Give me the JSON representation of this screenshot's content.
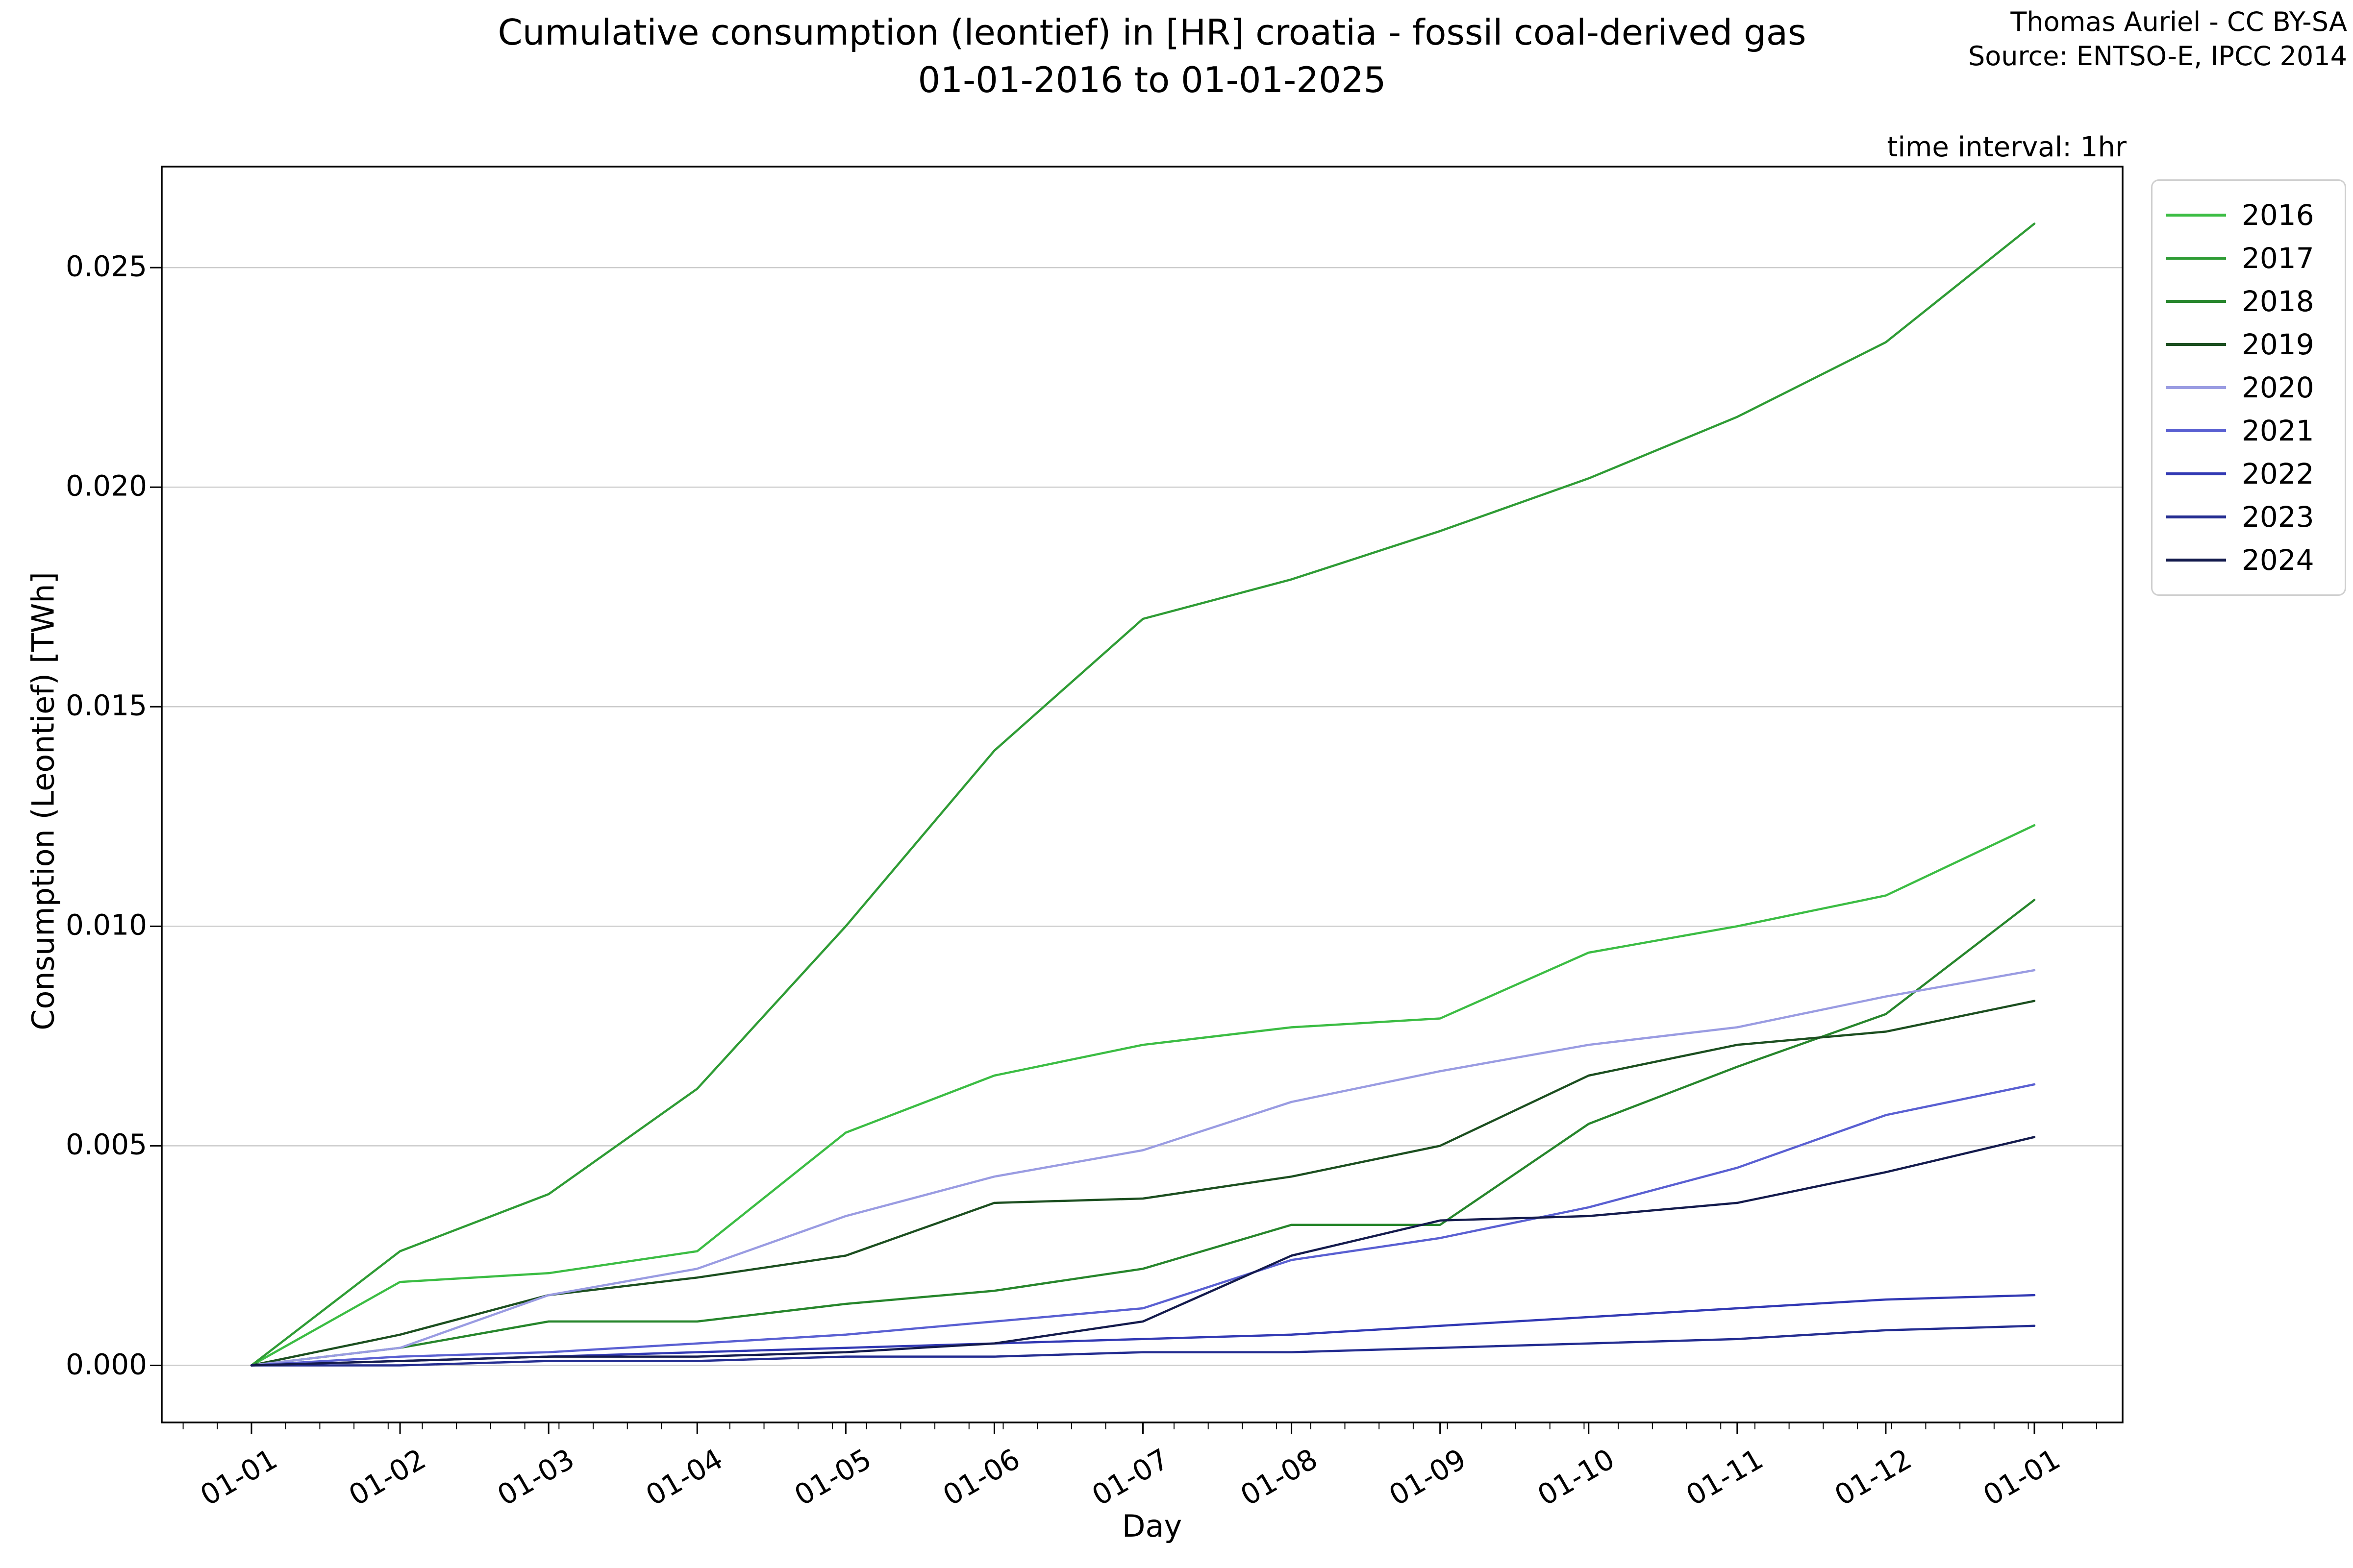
{
  "title_line1": "Cumulative consumption (leontief) in [HR] croatia - fossil coal-derived gas",
  "title_line2": "01-01-2016 to 01-01-2025",
  "attribution_line1": "Thomas Auriel - CC BY-SA",
  "attribution_line2": "Source: ENTSO-E, IPCC 2014",
  "annotation": "time interval: 1hr",
  "chart_data": {
    "type": "line",
    "title": "Cumulative consumption (leontief) in [HR] croatia - fossil coal-derived gas 01-01-2016 to 01-01-2025",
    "xlabel": "Day",
    "ylabel": "Consumption (Leontief) [TWh]",
    "x_tick_labels": [
      "01-01",
      "01-02",
      "01-03",
      "01-04",
      "01-05",
      "01-06",
      "01-07",
      "01-08",
      "01-09",
      "01-10",
      "01-11",
      "01-12",
      "01-01"
    ],
    "y_tick_labels": [
      "0.000",
      "0.005",
      "0.010",
      "0.015",
      "0.020",
      "0.025"
    ],
    "y_tick_values": [
      0.0,
      0.005,
      0.01,
      0.015,
      0.02,
      0.025
    ],
    "ylim": [
      -0.0013,
      0.0273
    ],
    "grid": true,
    "grid_color": "#cccccc",
    "legend_position": "right",
    "legend_title": null,
    "x_unit": "month-of-year sample points (Jan 1 through following Jan 1)",
    "series": [
      {
        "name": "2016",
        "color": "#3cbd44",
        "values": [
          0.0,
          0.0019,
          0.0021,
          0.0026,
          0.0053,
          0.0066,
          0.0073,
          0.0077,
          0.0079,
          0.0094,
          0.01,
          0.0107,
          0.0123
        ]
      },
      {
        "name": "2017",
        "color": "#2f9c35",
        "values": [
          0.0,
          0.0026,
          0.0039,
          0.0063,
          0.01,
          0.014,
          0.017,
          0.0179,
          0.019,
          0.0202,
          0.0216,
          0.0233,
          0.026
        ]
      },
      {
        "name": "2018",
        "color": "#27862c",
        "values": [
          0.0,
          0.0004,
          0.001,
          0.001,
          0.0014,
          0.0017,
          0.0022,
          0.0032,
          0.0032,
          0.0055,
          0.0068,
          0.008,
          0.0106
        ]
      },
      {
        "name": "2019",
        "color": "#1c4f20",
        "values": [
          0.0,
          0.0007,
          0.0016,
          0.002,
          0.0025,
          0.0037,
          0.0038,
          0.0043,
          0.005,
          0.0066,
          0.0073,
          0.0076,
          0.0083
        ]
      },
      {
        "name": "2020",
        "color": "#9a9ce2",
        "values": [
          0.0,
          0.0004,
          0.0016,
          0.0022,
          0.0034,
          0.0043,
          0.0049,
          0.006,
          0.0067,
          0.0073,
          0.0077,
          0.0084,
          0.009
        ]
      },
      {
        "name": "2021",
        "color": "#5a60d2",
        "values": [
          0.0,
          0.0002,
          0.0003,
          0.0005,
          0.0007,
          0.001,
          0.0013,
          0.0024,
          0.0029,
          0.0036,
          0.0045,
          0.0057,
          0.0064
        ]
      },
      {
        "name": "2022",
        "color": "#3239b4",
        "values": [
          0.0,
          0.0001,
          0.0002,
          0.0003,
          0.0004,
          0.0005,
          0.0006,
          0.0007,
          0.0009,
          0.0011,
          0.0013,
          0.0015,
          0.0016
        ]
      },
      {
        "name": "2023",
        "color": "#242d91",
        "values": [
          0.0,
          0.0,
          0.0001,
          0.0001,
          0.0002,
          0.0002,
          0.0003,
          0.0003,
          0.0004,
          0.0005,
          0.0006,
          0.0008,
          0.0009
        ]
      },
      {
        "name": "2024",
        "color": "#141b4d",
        "values": [
          0.0,
          0.0001,
          0.0002,
          0.0002,
          0.0003,
          0.0005,
          0.001,
          0.0025,
          0.0033,
          0.0034,
          0.0037,
          0.0044,
          0.0052
        ]
      }
    ]
  }
}
